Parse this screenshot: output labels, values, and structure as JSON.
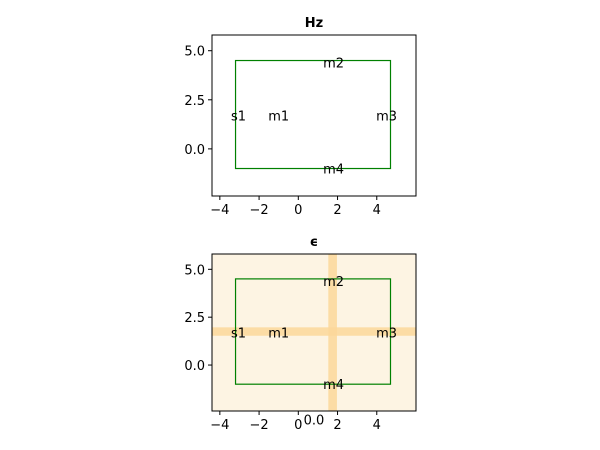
{
  "chart_data": [
    {
      "type": "heatmap",
      "title": "Hz",
      "xlabel": "",
      "ylabel": "",
      "xlim": [
        -4.4,
        6.0
      ],
      "ylim": [
        -2.4,
        5.8
      ],
      "xticks": [
        -4,
        -2,
        0,
        2,
        4
      ],
      "xtick_labels": [
        "−4",
        "−2",
        "0",
        "2",
        "4"
      ],
      "yticks": [
        0.0,
        2.5,
        5.0
      ],
      "ytick_labels": [
        "0.0",
        "2.5",
        "5.0"
      ],
      "grid": false,
      "background": "#ffffff",
      "region": {
        "x": [
          -3.2,
          4.7
        ],
        "y": [
          -1.0,
          4.5
        ],
        "color": "#008000"
      },
      "markers": [
        {
          "label": "s1",
          "x": -3.05,
          "y": 1.7
        },
        {
          "label": "m1",
          "x": -1.0,
          "y": 1.7
        },
        {
          "label": "m2",
          "x": 1.8,
          "y": 4.4
        },
        {
          "label": "m3",
          "x": 4.5,
          "y": 1.7
        },
        {
          "label": "m4",
          "x": 1.8,
          "y": -1.0
        }
      ]
    },
    {
      "type": "heatmap",
      "title": "ϵ",
      "xlabel": "",
      "ylabel": "",
      "xlim": [
        -4.4,
        6.0
      ],
      "ylim": [
        -2.4,
        5.8
      ],
      "xticks": [
        -4,
        -2,
        0,
        2,
        4
      ],
      "xtick_labels": [
        "−4",
        "−2",
        "0",
        "2",
        "4"
      ],
      "yticks": [
        0.0,
        2.5,
        5.0
      ],
      "ytick_labels": [
        "0.0",
        "2.5",
        "5.0"
      ],
      "grid": false,
      "background": "#fdf4e3",
      "band_color": "#fbd79a",
      "bands": {
        "horizontal_y": 1.75,
        "horizontal_halfwidth": 0.22,
        "vertical_x": 1.75,
        "vertical_halfwidth": 0.22
      },
      "region": {
        "x": [
          -3.2,
          4.7
        ],
        "y": [
          -1.0,
          4.5
        ],
        "color": "#008000"
      },
      "markers": [
        {
          "label": "s1",
          "x": -3.05,
          "y": 1.7
        },
        {
          "label": "m1",
          "x": -1.0,
          "y": 1.7
        },
        {
          "label": "m2",
          "x": 1.8,
          "y": 4.4
        },
        {
          "label": "m3",
          "x": 4.5,
          "y": 1.7
        },
        {
          "label": "m4",
          "x": 1.8,
          "y": -1.0
        }
      ],
      "extra_labels": [
        {
          "text": "0.0",
          "x": 0.8,
          "y": -2.85
        }
      ]
    }
  ]
}
